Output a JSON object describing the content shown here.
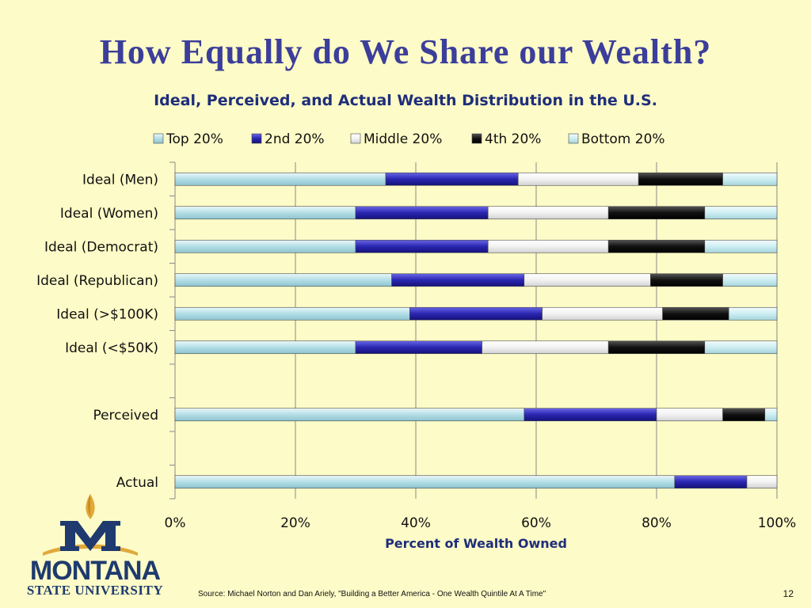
{
  "slide": {
    "title": "How Equally do We Share our Wealth?",
    "source": "Source: Michael Norton and Dan Ariely, \"Building a Better America - One Wealth Quintile At A Time\"",
    "page_number": "12"
  },
  "logo": {
    "line1": "MONTANA",
    "line2": "STATE UNIVERSITY"
  },
  "colors": {
    "background": "#FDFBC7",
    "title": "#3B3E9A",
    "subtitle": "#1F2E7A"
  },
  "chart_data": {
    "type": "bar",
    "orientation": "horizontal",
    "stacked": "percent",
    "title": "Ideal, Perceived, and Actual Wealth Distribution in the U.S.",
    "xlabel": "Percent of Wealth Owned",
    "ylabel": "",
    "xlim": [
      0,
      100
    ],
    "x_ticks": [
      "0%",
      "20%",
      "40%",
      "60%",
      "80%",
      "100%"
    ],
    "grid": true,
    "legend_position": "top",
    "categories": [
      "Ideal (Men)",
      "Ideal (Women)",
      "Ideal (Democrat)",
      "Ideal (Republican)",
      "Ideal (>$100K)",
      "Ideal (<$50K)",
      "",
      "Perceived",
      "",
      "Actual"
    ],
    "series": [
      {
        "name": "Top 20%",
        "color": "#B9E3EA",
        "values": [
          35,
          30,
          30,
          36,
          39,
          30,
          null,
          58,
          null,
          83
        ]
      },
      {
        "name": "2nd 20%",
        "color": "#2A26B0",
        "values": [
          22,
          22,
          22,
          22,
          22,
          21,
          null,
          22,
          null,
          12
        ]
      },
      {
        "name": "Middle 20%",
        "color": "#F4F4F4",
        "values": [
          20,
          20,
          20,
          21,
          20,
          21,
          null,
          11,
          null,
          5
        ]
      },
      {
        "name": "4th 20%",
        "color": "#0A0A0A",
        "values": [
          14,
          16,
          16,
          12,
          11,
          16,
          null,
          7,
          null,
          0
        ]
      },
      {
        "name": "Bottom 20%",
        "color": "#CDEEF2",
        "values": [
          9,
          12,
          12,
          9,
          8,
          12,
          null,
          2,
          null,
          0
        ]
      }
    ]
  }
}
